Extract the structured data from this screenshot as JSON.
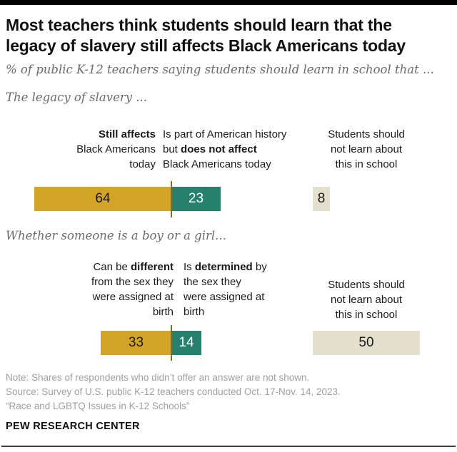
{
  "header": {
    "title_line1": "Most teachers think students should learn that the",
    "title_line2": "legacy of slavery still affects Black Americans today",
    "subtitle": "% of public K-12 teachers saying students should learn in school that ..."
  },
  "section1": {
    "label": "The legacy of slavery ...",
    "col1": {
      "line1_bold": "Still affects",
      "line2": "Black Americans",
      "line3": "today"
    },
    "col2": {
      "line1": "Is part of American history",
      "line2_pre": "but ",
      "line2_bold": "does not affect",
      "line3": "Black Americans today"
    },
    "col3": {
      "line1": "Students should",
      "line2": "not learn about",
      "line3": "this in school"
    }
  },
  "section2": {
    "label": "Whether someone is a boy or a girl...",
    "col1": {
      "line1_pre": "Can be ",
      "line1_bold": "different",
      "line2": "from the sex they",
      "line3": "were assigned at",
      "line4": "birth"
    },
    "col2": {
      "line1_pre": "Is ",
      "line1_bold": "determined",
      "line1_post": " by",
      "line2": "the sex they",
      "line3": "were assigned at",
      "line4": "birth"
    },
    "col3": {
      "line1": "Students should",
      "line2": "not learn about",
      "line3": "this in school"
    }
  },
  "chart_data": [
    {
      "type": "bar",
      "orientation": "horizontal",
      "unit": "%",
      "group_label": "The legacy of slavery ...",
      "categories": [
        "Still affects Black Americans today",
        "Is part of American history but does not affect Black Americans today",
        "Students should not learn about this in school"
      ],
      "values": [
        64,
        23,
        8
      ],
      "colors": [
        "#d4a429",
        "#26806e",
        "#e4e0ce"
      ]
    },
    {
      "type": "bar",
      "orientation": "horizontal",
      "unit": "%",
      "group_label": "Whether someone is a boy or a girl...",
      "categories": [
        "Can be different from the sex they were assigned at birth",
        "Is determined by the sex they were assigned at birth",
        "Students should not learn about this in school"
      ],
      "values": [
        33,
        14,
        50
      ],
      "colors": [
        "#d4a429",
        "#26806e",
        "#e4e0ce"
      ]
    }
  ],
  "footer": {
    "note": "Note: Shares of respondents who didn’t offer an answer are not shown.",
    "source": "Source: Survey of U.S. public K-12 teachers conducted Oct. 17-Nov. 14, 2023.",
    "report": "“Race and LGBTQ Issues in K-12 Schools”",
    "brand": "PEW RESEARCH CENTER"
  },
  "colors": {
    "gold": "#d4a429",
    "teal": "#26806e",
    "beige": "#e4e0ce",
    "axis_divider": "#7d6f2a",
    "note_gray": "#9f9f9f",
    "title_black": "#121212"
  }
}
